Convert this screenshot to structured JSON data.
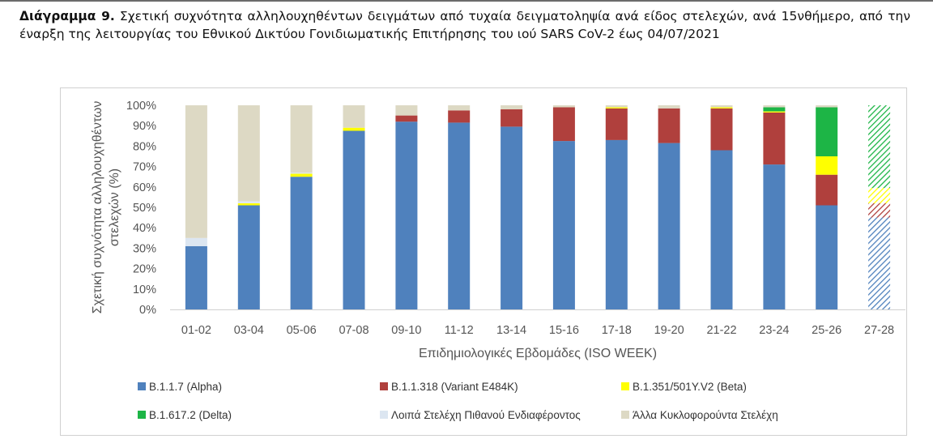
{
  "caption": {
    "label": "Διάγραμμα 9.",
    "text": "Σχετική συχνότητα αλληλουχηθέντων δειγμάτων από τυχαία δειγματοληψία ανά είδος στελεχών, ανά 15νθήμερο, από την έναρξη της λειτουργίας του Εθνικού Δικτύου Γονιδιωματικής Επιτήρησης του ιού SARS CoV-2 έως 04/07/2021"
  },
  "chart_data": {
    "type": "bar",
    "stacked": true,
    "xlabel": "Επιδημιολογικές Εβδομάδες (ISO WEEK)",
    "ylabel": "Σχετική συχνότητα αλληλουχηθέντων στελεχών (%)",
    "ylim": [
      0,
      100
    ],
    "yticks": [
      "0%",
      "10%",
      "20%",
      "30%",
      "40%",
      "50%",
      "60%",
      "70%",
      "80%",
      "90%",
      "100%"
    ],
    "grid": false,
    "legend_position": "bottom",
    "categories": [
      "01-02",
      "03-04",
      "05-06",
      "07-08",
      "09-10",
      "11-12",
      "13-14",
      "15-16",
      "17-18",
      "19-20",
      "21-22",
      "23-24",
      "25-26",
      "27-28"
    ],
    "hatched_categories": [
      "27-28"
    ],
    "series": [
      {
        "name": "B.1.1.7 (Alpha)",
        "color": "#4f81bd",
        "values": [
          31,
          51,
          65,
          87.5,
          92,
          91.5,
          89.5,
          82.5,
          83,
          81.5,
          78,
          71,
          51,
          45
        ]
      },
      {
        "name": "B.1.1.318 (Variant E484K)",
        "color": "#b0403d",
        "values": [
          0,
          0,
          0,
          0,
          3,
          6,
          8.5,
          16.5,
          15.5,
          17,
          20.5,
          25.5,
          15,
          7
        ]
      },
      {
        "name": "B.1.351/501Y.V2 (Beta)",
        "color": "#ffff00",
        "values": [
          0,
          1,
          1.5,
          1.5,
          0,
          0,
          0,
          0,
          0.5,
          0,
          0.5,
          0.5,
          9,
          7.5
        ]
      },
      {
        "name": "B.1.617.2 (Delta)",
        "color": "#1db546",
        "values": [
          0,
          0,
          0,
          0,
          0,
          0,
          0,
          0,
          0,
          0,
          0,
          2,
          24,
          40.5
        ]
      },
      {
        "name": "Λοιπά Στελέχη Πιθανού Ενδιαφέροντος",
        "color": "#dce6f1",
        "values": [
          4,
          1,
          0.5,
          0,
          0,
          0,
          0,
          0,
          0,
          0,
          0,
          0,
          0,
          0
        ]
      },
      {
        "name": "Άλλα Κυκλοφορούντα Στελέχη",
        "color": "#ddd9c4",
        "values": [
          65,
          47,
          33,
          11,
          5,
          2.5,
          2,
          1,
          1,
          1.5,
          1,
          1,
          1,
          0
        ]
      }
    ]
  }
}
